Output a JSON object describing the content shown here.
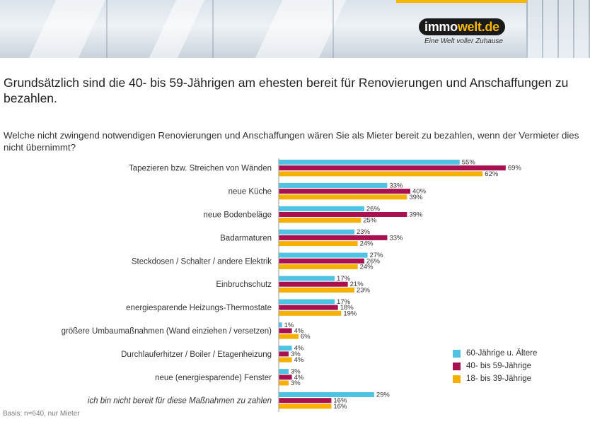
{
  "brand": {
    "logo_part1": "immo",
    "logo_part2": "welt.de",
    "tagline": "Eine Welt voller Zuhause"
  },
  "headline": "Grundsätzlich sind die 40- bis 59-Jährigen am ehesten bereit für Renovierungen und Anschaffungen zu bezahlen.",
  "question": "Welche nicht zwingend notwendigen Renovierungen und Anschaffungen wären Sie als Mieter bereit zu bezahlen, wenn der Vermieter dies nicht übernimmt?",
  "basis": "Basis: n=640, nur Mieter",
  "colors": {
    "series_60": "#4fc3e4",
    "series_40": "#a8104f",
    "series_18": "#f5b000"
  },
  "chart_data": {
    "type": "bar",
    "orientation": "horizontal",
    "categories": [
      "Tapezieren bzw. Streichen von Wänden",
      "neue Küche",
      "neue Bodenbeläge",
      "Badarmaturen",
      "Steckdosen / Schalter / andere Elektrik",
      "Einbruchschutz",
      "energiesparende Heizungs-Thermostate",
      "größere Umbaumaßnahmen (Wand einziehen / versetzen)",
      "Durchlauferhitzer / Boiler / Etagenheizung",
      "neue (energiesparende) Fenster",
      "ich bin nicht bereit für diese Maßnahmen zu zahlen"
    ],
    "italic_categories": [
      "ich bin nicht bereit für diese Maßnahmen zu zahlen"
    ],
    "series": [
      {
        "name": "60-Jährige u. Ältere",
        "color": "#4fc3e4",
        "values": [
          55,
          33,
          26,
          23,
          27,
          17,
          17,
          1,
          4,
          3,
          29
        ]
      },
      {
        "name": "40- bis 59-Jährige",
        "color": "#a8104f",
        "values": [
          69,
          40,
          39,
          33,
          26,
          21,
          18,
          4,
          3,
          4,
          16
        ]
      },
      {
        "name": "18- bis 39-Jährige",
        "color": "#f5b000",
        "values": [
          62,
          39,
          25,
          24,
          24,
          23,
          19,
          6,
          4,
          3,
          16
        ]
      }
    ],
    "value_suffix": "%",
    "xlim": [
      0,
      80
    ],
    "grid": false,
    "legend_position": "bottom-right"
  }
}
